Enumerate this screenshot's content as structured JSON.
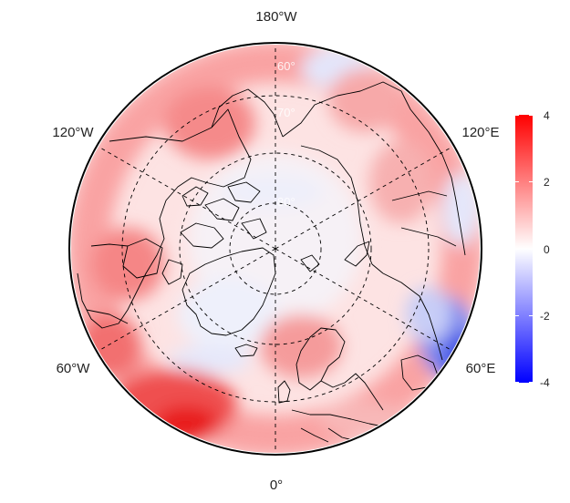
{
  "map": {
    "projection": "north-polar-stereographic",
    "center_latitude": 90,
    "longitude_labels": {
      "top": "180°W",
      "upper_left": "120°W",
      "upper_right": "120°E",
      "lower_left": "60°W",
      "lower_right": "60°E",
      "bottom": "0°"
    },
    "latitude_labels": [
      "60°",
      "70°",
      "80°"
    ],
    "graticule_style": "dashed"
  },
  "colorbar": {
    "ticks": [
      "4",
      "2",
      "0",
      "-2",
      "-4"
    ],
    "min": -4,
    "max": 4,
    "colors": {
      "low": "#0000ff",
      "mid": "#ffffff",
      "high": "#ff0000"
    }
  }
}
